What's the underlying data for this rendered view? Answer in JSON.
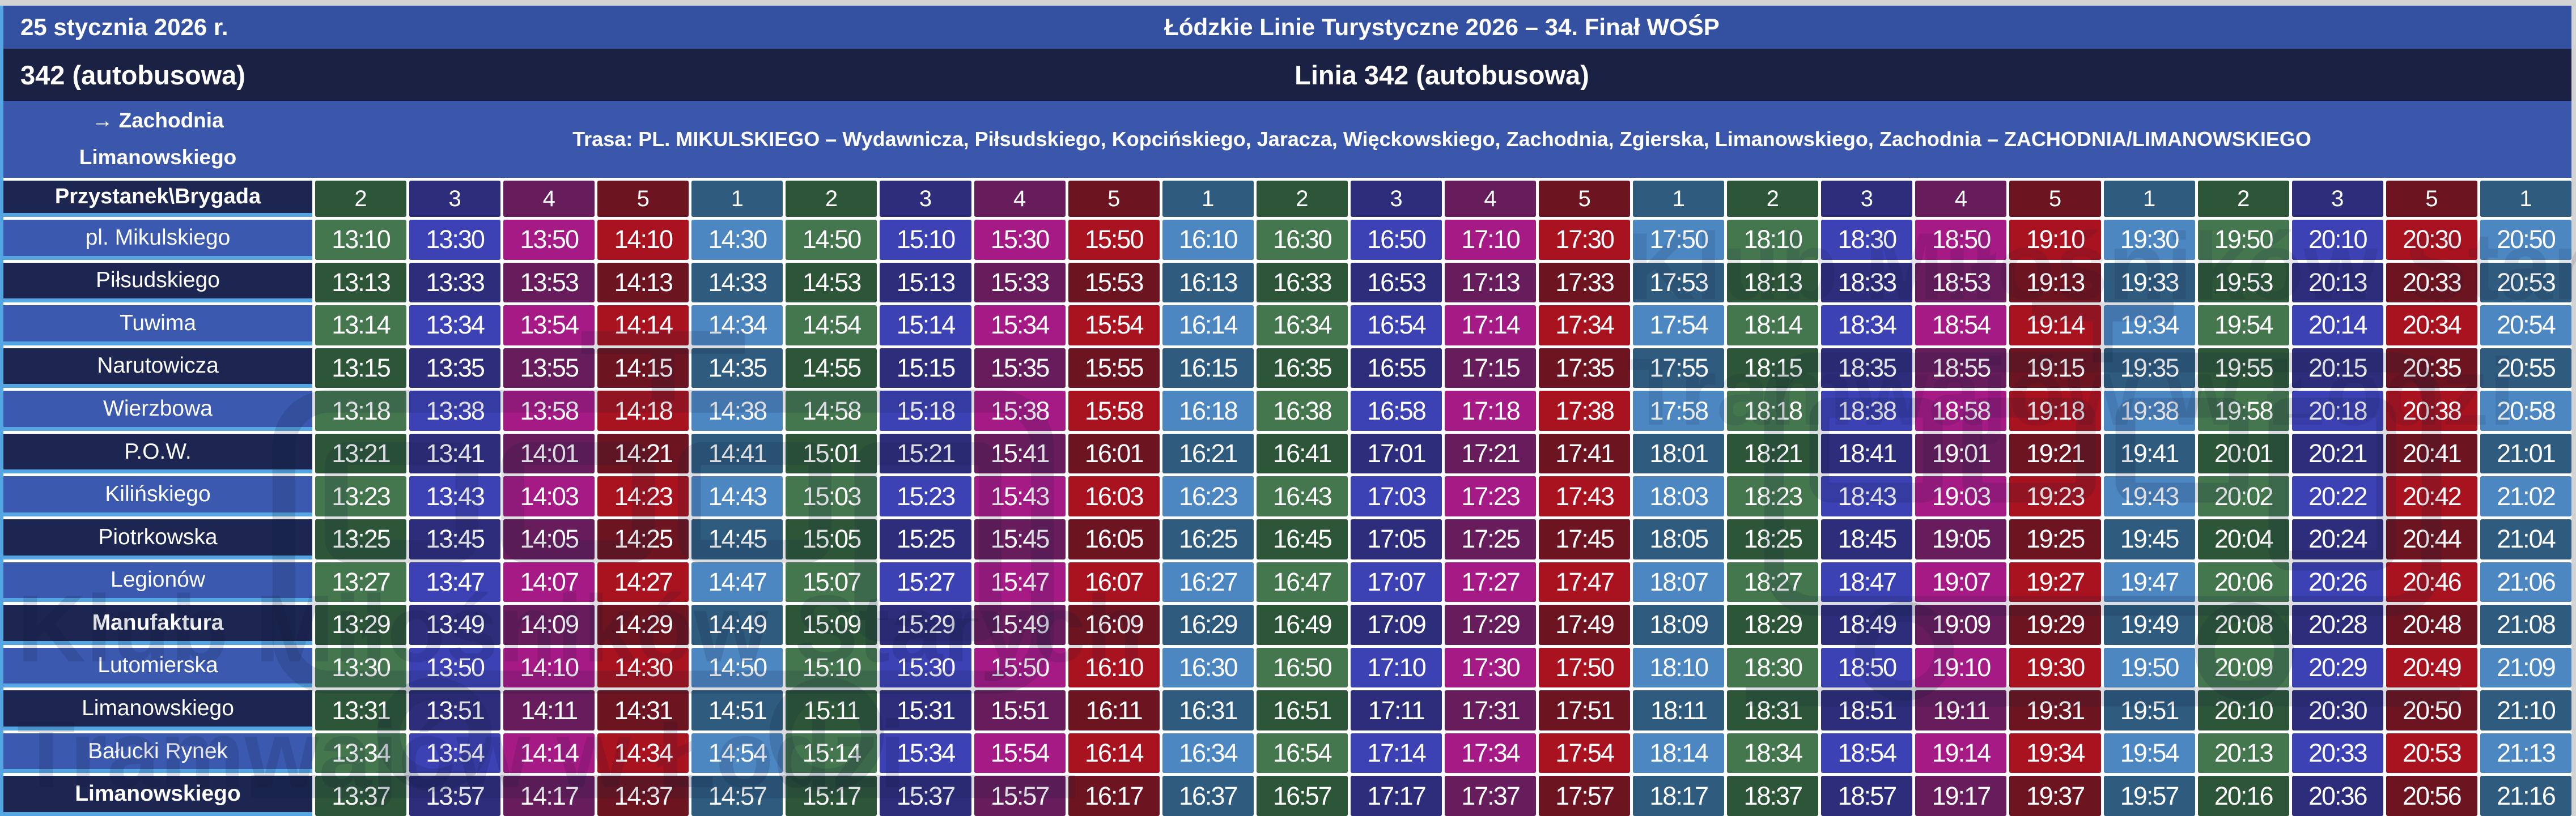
{
  "header": {
    "date": "25 stycznia 2026 r.",
    "event_title": "Łódzkie Linie Turystyczne 2026 – 34. Finał WOŚP",
    "line_short": "342 (autobusowa)",
    "line_title": "Linia 342 (autobusowa)",
    "direction_line1": "→ Zachodnia",
    "direction_line2": "Limanowskiego",
    "route": "Trasa: PL. MIKULSKIEGO – Wydawnicza, Piłsudskiego, Kopcińskiego, Jaracza, Więckowskiego, Zachodnia, Zgierska, Limanowskiego, Zachodnia – ZACHODNIA/LIMANOWSKIEGO"
  },
  "watermark": {
    "line1": "Klub Miłośników Starych",
    "line2": "Tramwajów w Łodzi"
  },
  "colors": {
    "page_bg": "#d3d3d3",
    "grid_white": "#ffffff",
    "accent": "#54a5e1",
    "bar_date_bg": "#3350a1",
    "bar_line_bg": "#1a2143",
    "bar_route_bg": "#3a57ab",
    "stop_cell_blue": "#3b59ae",
    "stop_cell_navy": "#1c2650",
    "watermark_color": "rgba(16,24,56,0.14)",
    "watermark_stroke": "rgba(16,24,56,0.15)",
    "brigade": {
      "1": {
        "bright": "#4c87c2",
        "dark": "#2e5b7e"
      },
      "2": {
        "bright": "#45774f",
        "dark": "#2d5639"
      },
      "3": {
        "bright": "#3c41b4",
        "dark": "#2e2d7c"
      },
      "4": {
        "bright": "#a61a85",
        "dark": "#671d5c"
      },
      "5": {
        "bright": "#a91320",
        "dark": "#6d1421"
      }
    }
  },
  "timetable": {
    "corner_label": "Przystanek\\Brygada",
    "brigades": [
      "2",
      "3",
      "4",
      "5",
      "1",
      "2",
      "3",
      "4",
      "5",
      "1",
      "2",
      "3",
      "4",
      "5",
      "1",
      "2",
      "3",
      "4",
      "5",
      "1",
      "2",
      "3",
      "5",
      "1"
    ],
    "stops": [
      {
        "name": "pl. Mikulskiego",
        "bold": false,
        "times": [
          "13:10",
          "13:30",
          "13:50",
          "14:10",
          "14:30",
          "14:50",
          "15:10",
          "15:30",
          "15:50",
          "16:10",
          "16:30",
          "16:50",
          "17:10",
          "17:30",
          "17:50",
          "18:10",
          "18:30",
          "18:50",
          "19:10",
          "19:30",
          "19:50",
          "20:10",
          "20:30",
          "20:50"
        ]
      },
      {
        "name": "Piłsudskiego",
        "bold": false,
        "times": [
          "13:13",
          "13:33",
          "13:53",
          "14:13",
          "14:33",
          "14:53",
          "15:13",
          "15:33",
          "15:53",
          "16:13",
          "16:33",
          "16:53",
          "17:13",
          "17:33",
          "17:53",
          "18:13",
          "18:33",
          "18:53",
          "19:13",
          "19:33",
          "19:53",
          "20:13",
          "20:33",
          "20:53"
        ]
      },
      {
        "name": "Tuwima",
        "bold": false,
        "times": [
          "13:14",
          "13:34",
          "13:54",
          "14:14",
          "14:34",
          "14:54",
          "15:14",
          "15:34",
          "15:54",
          "16:14",
          "16:34",
          "16:54",
          "17:14",
          "17:34",
          "17:54",
          "18:14",
          "18:34",
          "18:54",
          "19:14",
          "19:34",
          "19:54",
          "20:14",
          "20:34",
          "20:54"
        ]
      },
      {
        "name": "Narutowicza",
        "bold": false,
        "times": [
          "13:15",
          "13:35",
          "13:55",
          "14:15",
          "14:35",
          "14:55",
          "15:15",
          "15:35",
          "15:55",
          "16:15",
          "16:35",
          "16:55",
          "17:15",
          "17:35",
          "17:55",
          "18:15",
          "18:35",
          "18:55",
          "19:15",
          "19:35",
          "19:55",
          "20:15",
          "20:35",
          "20:55"
        ]
      },
      {
        "name": "Wierzbowa",
        "bold": false,
        "times": [
          "13:18",
          "13:38",
          "13:58",
          "14:18",
          "14:38",
          "14:58",
          "15:18",
          "15:38",
          "15:58",
          "16:18",
          "16:38",
          "16:58",
          "17:18",
          "17:38",
          "17:58",
          "18:18",
          "18:38",
          "18:58",
          "19:18",
          "19:38",
          "19:58",
          "20:18",
          "20:38",
          "20:58"
        ]
      },
      {
        "name": "P.O.W.",
        "bold": false,
        "times": [
          "13:21",
          "13:41",
          "14:01",
          "14:21",
          "14:41",
          "15:01",
          "15:21",
          "15:41",
          "16:01",
          "16:21",
          "16:41",
          "17:01",
          "17:21",
          "17:41",
          "18:01",
          "18:21",
          "18:41",
          "19:01",
          "19:21",
          "19:41",
          "20:01",
          "20:21",
          "20:41",
          "21:01"
        ]
      },
      {
        "name": "Kilińskiego",
        "bold": false,
        "times": [
          "13:23",
          "13:43",
          "14:03",
          "14:23",
          "14:43",
          "15:03",
          "15:23",
          "15:43",
          "16:03",
          "16:23",
          "16:43",
          "17:03",
          "17:23",
          "17:43",
          "18:03",
          "18:23",
          "18:43",
          "19:03",
          "19:23",
          "19:43",
          "20:02",
          "20:22",
          "20:42",
          "21:02"
        ]
      },
      {
        "name": "Piotrkowska",
        "bold": false,
        "times": [
          "13:25",
          "13:45",
          "14:05",
          "14:25",
          "14:45",
          "15:05",
          "15:25",
          "15:45",
          "16:05",
          "16:25",
          "16:45",
          "17:05",
          "17:25",
          "17:45",
          "18:05",
          "18:25",
          "18:45",
          "19:05",
          "19:25",
          "19:45",
          "20:04",
          "20:24",
          "20:44",
          "21:04"
        ]
      },
      {
        "name": "Legionów",
        "bold": false,
        "times": [
          "13:27",
          "13:47",
          "14:07",
          "14:27",
          "14:47",
          "15:07",
          "15:27",
          "15:47",
          "16:07",
          "16:27",
          "16:47",
          "17:07",
          "17:27",
          "17:47",
          "18:07",
          "18:27",
          "18:47",
          "19:07",
          "19:27",
          "19:47",
          "20:06",
          "20:26",
          "20:46",
          "21:06"
        ]
      },
      {
        "name": "Manufaktura",
        "bold": true,
        "times": [
          "13:29",
          "13:49",
          "14:09",
          "14:29",
          "14:49",
          "15:09",
          "15:29",
          "15:49",
          "16:09",
          "16:29",
          "16:49",
          "17:09",
          "17:29",
          "17:49",
          "18:09",
          "18:29",
          "18:49",
          "19:09",
          "19:29",
          "19:49",
          "20:08",
          "20:28",
          "20:48",
          "21:08"
        ]
      },
      {
        "name": "Lutomierska",
        "bold": false,
        "times": [
          "13:30",
          "13:50",
          "14:10",
          "14:30",
          "14:50",
          "15:10",
          "15:30",
          "15:50",
          "16:10",
          "16:30",
          "16:50",
          "17:10",
          "17:30",
          "17:50",
          "18:10",
          "18:30",
          "18:50",
          "19:10",
          "19:30",
          "19:50",
          "20:09",
          "20:29",
          "20:49",
          "21:09"
        ]
      },
      {
        "name": "Limanowskiego",
        "bold": false,
        "times": [
          "13:31",
          "13:51",
          "14:11",
          "14:31",
          "14:51",
          "15:11",
          "15:31",
          "15:51",
          "16:11",
          "16:31",
          "16:51",
          "17:11",
          "17:31",
          "17:51",
          "18:11",
          "18:31",
          "18:51",
          "19:11",
          "19:31",
          "19:51",
          "20:10",
          "20:30",
          "20:50",
          "21:10"
        ]
      },
      {
        "name": "Bałucki Rynek",
        "bold": false,
        "times": [
          "13:34",
          "13:54",
          "14:14",
          "14:34",
          "14:54",
          "15:14",
          "15:34",
          "15:54",
          "16:14",
          "16:34",
          "16:54",
          "17:14",
          "17:34",
          "17:54",
          "18:14",
          "18:34",
          "18:54",
          "19:14",
          "19:34",
          "19:54",
          "20:13",
          "20:33",
          "20:53",
          "21:13"
        ]
      },
      {
        "name": "Limanowskiego",
        "bold": true,
        "times": [
          "13:37",
          "13:57",
          "14:17",
          "14:37",
          "14:57",
          "15:17",
          "15:37",
          "15:57",
          "16:17",
          "16:37",
          "16:57",
          "17:17",
          "17:37",
          "17:57",
          "18:17",
          "18:37",
          "18:57",
          "19:17",
          "19:37",
          "19:57",
          "20:16",
          "20:36",
          "20:56",
          "21:16"
        ]
      }
    ]
  }
}
